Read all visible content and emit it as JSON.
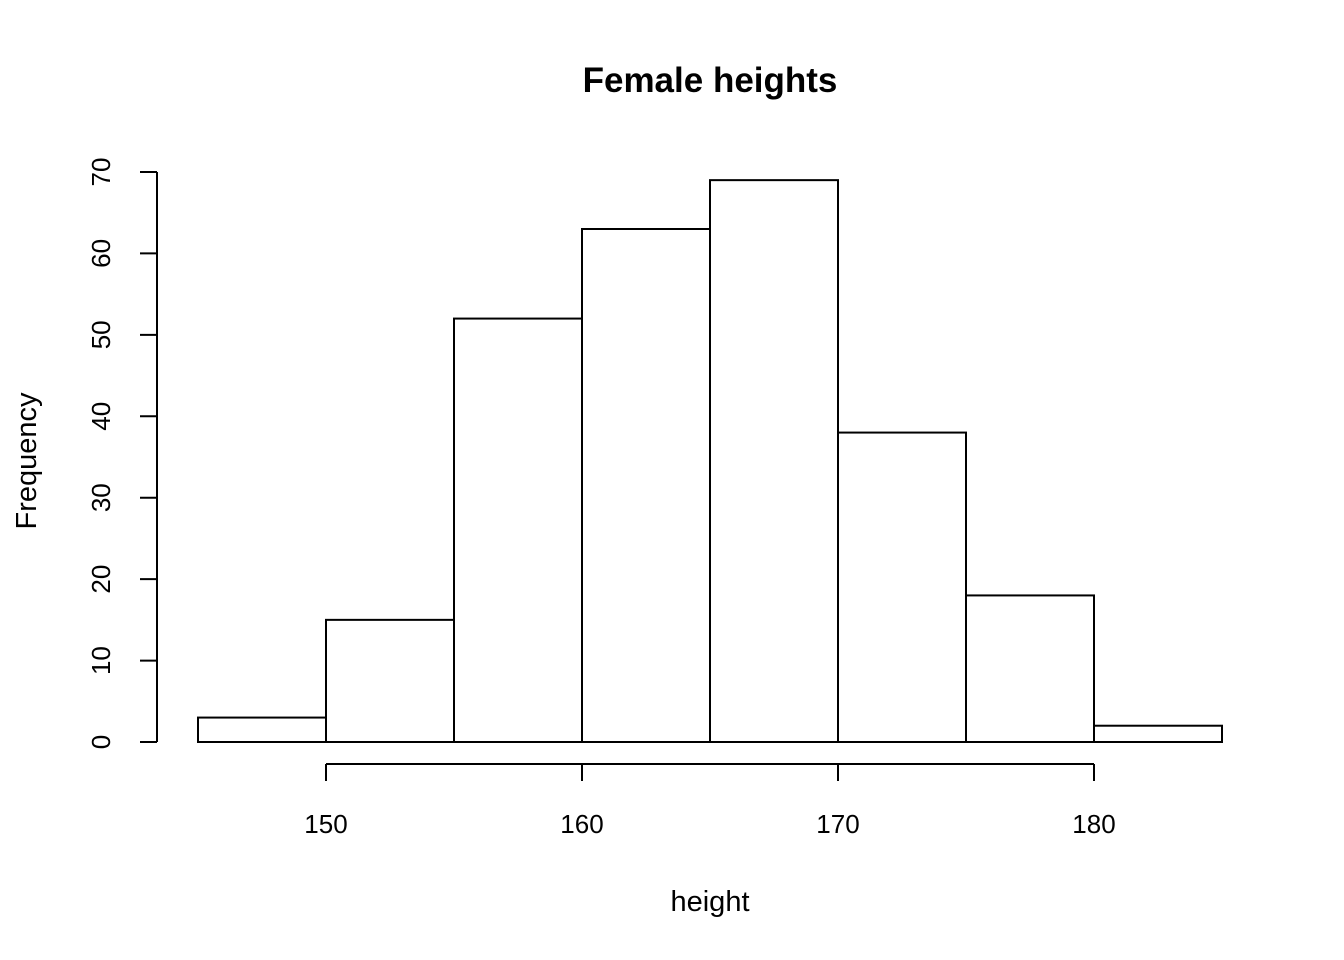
{
  "chart_data": {
    "type": "bar",
    "title": "Female heights",
    "xlabel": "height",
    "ylabel": "Frequency",
    "bins": [
      {
        "x0": 145,
        "x1": 150,
        "count": 3
      },
      {
        "x0": 150,
        "x1": 155,
        "count": 15
      },
      {
        "x0": 155,
        "x1": 160,
        "count": 52
      },
      {
        "x0": 160,
        "x1": 165,
        "count": 63
      },
      {
        "x0": 165,
        "x1": 170,
        "count": 69
      },
      {
        "x0": 170,
        "x1": 175,
        "count": 38
      },
      {
        "x0": 175,
        "x1": 180,
        "count": 18
      },
      {
        "x0": 180,
        "x1": 185,
        "count": 2
      }
    ],
    "xlim": [
      145,
      185
    ],
    "ylim": [
      0,
      70
    ],
    "x_ticks": [
      "150",
      "160",
      "170",
      "180"
    ],
    "y_ticks": [
      "0",
      "10",
      "20",
      "30",
      "40",
      "50",
      "60",
      "70"
    ],
    "grid": false,
    "legend": "none"
  }
}
